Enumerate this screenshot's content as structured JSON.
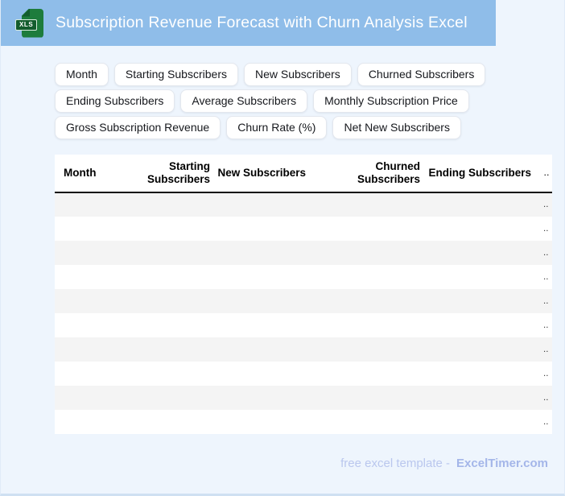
{
  "header": {
    "title": "Subscription Revenue Forecast with Churn Analysis Excel",
    "icon_label": "XLS"
  },
  "tags": [
    "Month",
    "Starting Subscribers",
    "New Subscribers",
    "Churned Subscribers",
    "Ending Subscribers",
    "Average Subscribers",
    "Monthly Subscription Price",
    "Gross Subscription Revenue",
    "Churn Rate (%)",
    "Net New Subscribers"
  ],
  "table": {
    "columns": [
      "Month",
      "Starting Subscribers",
      "New Subscribers",
      "Churned Subscribers",
      "Ending Subscribers"
    ],
    "truncated_header": "..",
    "rows": [
      "..",
      "..",
      "..",
      "..",
      "..",
      "..",
      "..",
      "..",
      "..",
      ".."
    ]
  },
  "footer": {
    "prefix": "free excel template -",
    "brand": "ExcelTimer.com"
  },
  "colors": {
    "banner": "#8fbde9",
    "page_bg": "#eef5fd",
    "row_stripe": "#f4f4f4",
    "icon_green": "#1d7c3c",
    "icon_green_dark": "#135c2d",
    "footer_text": "#bac7ee",
    "footer_brand": "#a4b6e9",
    "bottom_strip": "#cfe0f2"
  }
}
